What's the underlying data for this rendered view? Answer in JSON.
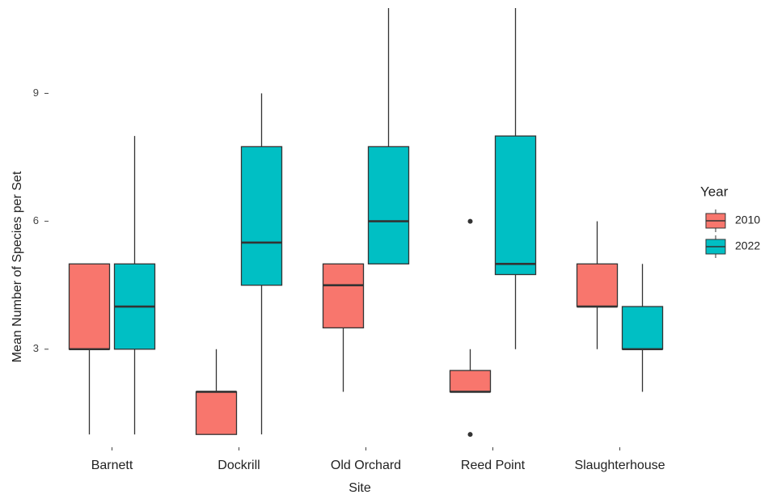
{
  "chart_data": {
    "type": "box",
    "x_label": "Site",
    "y_label": "Mean Number of Species per Set",
    "legend_title": "Year",
    "legend_position": "right",
    "categories": [
      "Barnett",
      "Dockrill",
      "Old Orchard",
      "Reed Point",
      "Slaughterhouse"
    ],
    "ylim": [
      0.7,
      11
    ],
    "yticks": [
      3,
      6,
      9
    ],
    "grid": false,
    "series": [
      {
        "name": "2010",
        "color": "#f8766d",
        "min": [
          1,
          1,
          2,
          2,
          3
        ],
        "q1": [
          3,
          1,
          3.5,
          2,
          4
        ],
        "median": [
          3,
          2,
          4.5,
          2,
          4
        ],
        "q3": [
          5,
          2,
          5,
          2.5,
          5
        ],
        "max": [
          5,
          3,
          5,
          3,
          6
        ],
        "outliers": [
          [],
          [],
          [],
          [
            6,
            1
          ],
          []
        ]
      },
      {
        "name": "2022",
        "color": "#00bfc4",
        "min": [
          1,
          1,
          5,
          3,
          2
        ],
        "q1": [
          3,
          4.5,
          5,
          4.75,
          3
        ],
        "median": [
          4,
          5.5,
          6,
          5,
          3
        ],
        "q3": [
          5,
          7.75,
          7.75,
          8,
          4
        ],
        "max": [
          8,
          9,
          11,
          11,
          5
        ],
        "outliers": [
          [],
          [],
          [],
          [],
          []
        ]
      }
    ]
  }
}
